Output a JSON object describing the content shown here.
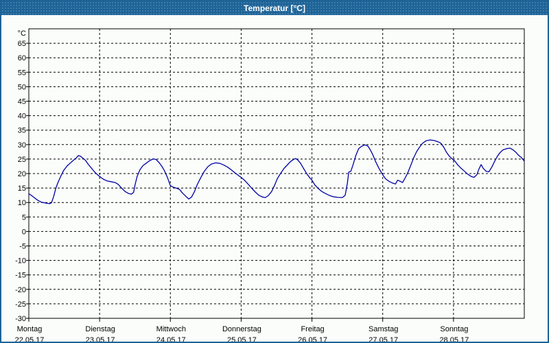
{
  "window": {
    "title": "Temperatur [°C]"
  },
  "colors": {
    "titlebar": "#1e6396",
    "window_border": "#1e6396",
    "plot_background": "#fbfdfb",
    "grid": "#000000",
    "frame": "#000000",
    "series_line": "#0000a0",
    "title_text": "#ffffff",
    "tick_text": "#000000"
  },
  "chart_data": {
    "type": "line",
    "title": "Temperatur [°C]",
    "ylabel": "°C",
    "unit_label": "°C",
    "ylim": [
      -30,
      70
    ],
    "ytick_min": -30,
    "ytick_max": 65,
    "ytick_step": 5,
    "grid": "dashed",
    "legend_position": "none",
    "x_days": [
      {
        "name": "Montag",
        "date": "22.05.17"
      },
      {
        "name": "Dienstag",
        "date": "23.05.17"
      },
      {
        "name": "Mittwoch",
        "date": "24.05.17"
      },
      {
        "name": "Donnerstag",
        "date": "25.05.17"
      },
      {
        "name": "Freitag",
        "date": "26.05.17"
      },
      {
        "name": "Samstag",
        "date": "27.05.17"
      },
      {
        "name": "Sonntag",
        "date": "28.05.17"
      }
    ],
    "x_range_days": 7,
    "series": [
      {
        "name": "Temperatur",
        "color": "#0000a0",
        "points": [
          [
            0.0,
            13.0
          ],
          [
            0.04,
            12.4
          ],
          [
            0.08,
            11.6
          ],
          [
            0.13,
            10.7
          ],
          [
            0.18,
            10.1
          ],
          [
            0.24,
            9.8
          ],
          [
            0.29,
            9.6
          ],
          [
            0.32,
            9.9
          ],
          [
            0.35,
            12.0
          ],
          [
            0.38,
            14.8
          ],
          [
            0.41,
            16.8
          ],
          [
            0.45,
            19.0
          ],
          [
            0.49,
            21.0
          ],
          [
            0.54,
            22.6
          ],
          [
            0.58,
            23.5
          ],
          [
            0.63,
            24.6
          ],
          [
            0.67,
            25.4
          ],
          [
            0.7,
            26.2
          ],
          [
            0.73,
            26.0
          ],
          [
            0.77,
            25.2
          ],
          [
            0.8,
            24.6
          ],
          [
            0.84,
            23.2
          ],
          [
            0.88,
            22.0
          ],
          [
            0.92,
            20.8
          ],
          [
            0.96,
            19.8
          ],
          [
            1.0,
            19.0
          ],
          [
            1.05,
            18.1
          ],
          [
            1.1,
            17.5
          ],
          [
            1.16,
            17.2
          ],
          [
            1.22,
            16.9
          ],
          [
            1.26,
            16.3
          ],
          [
            1.31,
            15.0
          ],
          [
            1.36,
            13.8
          ],
          [
            1.41,
            13.1
          ],
          [
            1.45,
            12.9
          ],
          [
            1.48,
            13.5
          ],
          [
            1.5,
            16.0
          ],
          [
            1.53,
            19.0
          ],
          [
            1.57,
            21.3
          ],
          [
            1.61,
            22.7
          ],
          [
            1.66,
            23.6
          ],
          [
            1.71,
            24.5
          ],
          [
            1.76,
            25.1
          ],
          [
            1.8,
            24.8
          ],
          [
            1.84,
            23.8
          ],
          [
            1.88,
            22.5
          ],
          [
            1.92,
            20.8
          ],
          [
            1.96,
            18.5
          ],
          [
            2.0,
            15.8
          ],
          [
            2.04,
            15.3
          ],
          [
            2.09,
            14.9
          ],
          [
            2.13,
            14.5
          ],
          [
            2.17,
            13.3
          ],
          [
            2.22,
            12.1
          ],
          [
            2.26,
            11.2
          ],
          [
            2.3,
            11.9
          ],
          [
            2.34,
            13.8
          ],
          [
            2.38,
            16.2
          ],
          [
            2.43,
            18.6
          ],
          [
            2.48,
            20.8
          ],
          [
            2.53,
            22.4
          ],
          [
            2.58,
            23.3
          ],
          [
            2.64,
            23.7
          ],
          [
            2.7,
            23.5
          ],
          [
            2.75,
            23.0
          ],
          [
            2.81,
            22.2
          ],
          [
            2.87,
            21.1
          ],
          [
            2.92,
            20.1
          ],
          [
            2.97,
            19.2
          ],
          [
            3.0,
            18.7
          ],
          [
            3.05,
            17.6
          ],
          [
            3.1,
            16.3
          ],
          [
            3.15,
            14.9
          ],
          [
            3.2,
            13.6
          ],
          [
            3.25,
            12.5
          ],
          [
            3.3,
            11.9
          ],
          [
            3.34,
            11.7
          ],
          [
            3.38,
            12.3
          ],
          [
            3.43,
            13.8
          ],
          [
            3.47,
            15.8
          ],
          [
            3.51,
            18.2
          ],
          [
            3.56,
            20.2
          ],
          [
            3.61,
            21.9
          ],
          [
            3.66,
            23.2
          ],
          [
            3.7,
            24.2
          ],
          [
            3.74,
            24.9
          ],
          [
            3.77,
            25.2
          ],
          [
            3.8,
            24.7
          ],
          [
            3.84,
            23.5
          ],
          [
            3.88,
            21.8
          ],
          [
            3.93,
            19.8
          ],
          [
            3.97,
            18.5
          ],
          [
            4.0,
            17.7
          ],
          [
            4.04,
            16.1
          ],
          [
            4.09,
            14.8
          ],
          [
            4.14,
            13.8
          ],
          [
            4.19,
            13.1
          ],
          [
            4.24,
            12.5
          ],
          [
            4.3,
            12.0
          ],
          [
            4.36,
            11.8
          ],
          [
            4.43,
            11.7
          ],
          [
            4.47,
            12.5
          ],
          [
            4.5,
            16.5
          ],
          [
            4.52,
            20.5
          ],
          [
            4.55,
            20.8
          ],
          [
            4.58,
            23.0
          ],
          [
            4.62,
            26.2
          ],
          [
            4.66,
            28.6
          ],
          [
            4.7,
            29.4
          ],
          [
            4.75,
            29.9
          ],
          [
            4.79,
            29.5
          ],
          [
            4.82,
            28.4
          ],
          [
            4.86,
            26.5
          ],
          [
            4.9,
            24.1
          ],
          [
            4.95,
            21.6
          ],
          [
            5.0,
            19.6
          ],
          [
            5.04,
            18.2
          ],
          [
            5.09,
            17.3
          ],
          [
            5.14,
            16.7
          ],
          [
            5.18,
            16.4
          ],
          [
            5.21,
            17.7
          ],
          [
            5.25,
            17.3
          ],
          [
            5.28,
            16.9
          ],
          [
            5.32,
            18.6
          ],
          [
            5.36,
            20.6
          ],
          [
            5.4,
            23.1
          ],
          [
            5.44,
            25.6
          ],
          [
            5.48,
            27.6
          ],
          [
            5.52,
            29.1
          ],
          [
            5.56,
            30.4
          ],
          [
            5.61,
            31.3
          ],
          [
            5.67,
            31.6
          ],
          [
            5.73,
            31.4
          ],
          [
            5.78,
            31.0
          ],
          [
            5.82,
            30.5
          ],
          [
            5.86,
            29.2
          ],
          [
            5.9,
            27.4
          ],
          [
            5.94,
            26.0
          ],
          [
            5.98,
            25.1
          ],
          [
            6.02,
            24.3
          ],
          [
            6.06,
            23.0
          ],
          [
            6.1,
            22.0
          ],
          [
            6.15,
            20.9
          ],
          [
            6.2,
            19.8
          ],
          [
            6.25,
            19.0
          ],
          [
            6.29,
            18.7
          ],
          [
            6.33,
            19.6
          ],
          [
            6.36,
            21.6
          ],
          [
            6.39,
            23.1
          ],
          [
            6.42,
            21.8
          ],
          [
            6.46,
            20.8
          ],
          [
            6.5,
            20.6
          ],
          [
            6.54,
            22.2
          ],
          [
            6.58,
            24.2
          ],
          [
            6.62,
            26.0
          ],
          [
            6.66,
            27.3
          ],
          [
            6.7,
            28.2
          ],
          [
            6.75,
            28.6
          ],
          [
            6.8,
            28.8
          ],
          [
            6.84,
            28.2
          ],
          [
            6.88,
            27.4
          ],
          [
            6.92,
            26.3
          ],
          [
            6.96,
            25.5
          ],
          [
            7.0,
            24.3
          ]
        ]
      }
    ]
  }
}
